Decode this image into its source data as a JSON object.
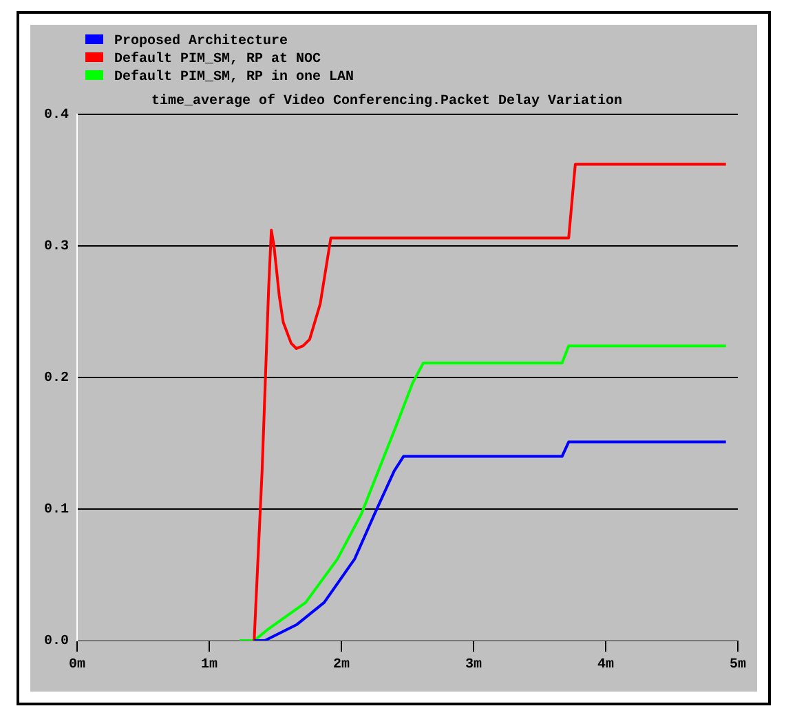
{
  "chart_data": {
    "type": "line",
    "title": "time_average of Video Conferencing.Packet Delay Variation",
    "xlim": [
      0,
      5
    ],
    "xticks": [
      {
        "value": 0,
        "label": "0m"
      },
      {
        "value": 1,
        "label": "1m"
      },
      {
        "value": 2,
        "label": "2m"
      },
      {
        "value": 3,
        "label": "3m"
      },
      {
        "value": 4,
        "label": "4m"
      },
      {
        "value": 5,
        "label": "5m"
      }
    ],
    "ylim": [
      0,
      0.4
    ],
    "yticks": [
      {
        "value": 0,
        "label": "0.0"
      },
      0.1,
      0.2,
      0.3,
      0.4
    ],
    "grid": "y",
    "legend": "top left",
    "marker": "none",
    "line_style": "solid",
    "series": [
      {
        "name": "Proposed Architecture",
        "color": "#0000ff",
        "x": [
          1.34,
          1.42,
          1.66,
          1.87,
          2.1,
          2.25,
          2.4,
          2.47,
          3.67,
          3.72,
          4.91
        ],
        "values": [
          0,
          0,
          0.012,
          0.029,
          0.062,
          0.096,
          0.129,
          0.14,
          0.14,
          0.151,
          0.151
        ]
      },
      {
        "name": "Default PIM_SM, RP at NOC",
        "color": "#ff0000",
        "x": [
          1.34,
          1.4,
          1.45,
          1.47,
          1.49,
          1.53,
          1.56,
          1.62,
          1.66,
          1.71,
          1.76,
          1.84,
          1.92,
          3.72,
          3.77,
          4.91
        ],
        "values": [
          0,
          0.129,
          0.269,
          0.312,
          0.3,
          0.262,
          0.242,
          0.226,
          0.222,
          0.224,
          0.229,
          0.256,
          0.306,
          0.306,
          0.362,
          0.362
        ]
      },
      {
        "name": "Default PIM_SM, RP in one LAN",
        "color": "#00ff00",
        "x": [
          1.23,
          1.34,
          1.45,
          1.73,
          1.97,
          2.15,
          2.28,
          2.41,
          2.54,
          2.62,
          3.67,
          3.72,
          4.91
        ],
        "values": [
          0,
          0,
          0.009,
          0.029,
          0.062,
          0.096,
          0.129,
          0.162,
          0.196,
          0.211,
          0.211,
          0.224,
          0.224
        ]
      }
    ]
  }
}
